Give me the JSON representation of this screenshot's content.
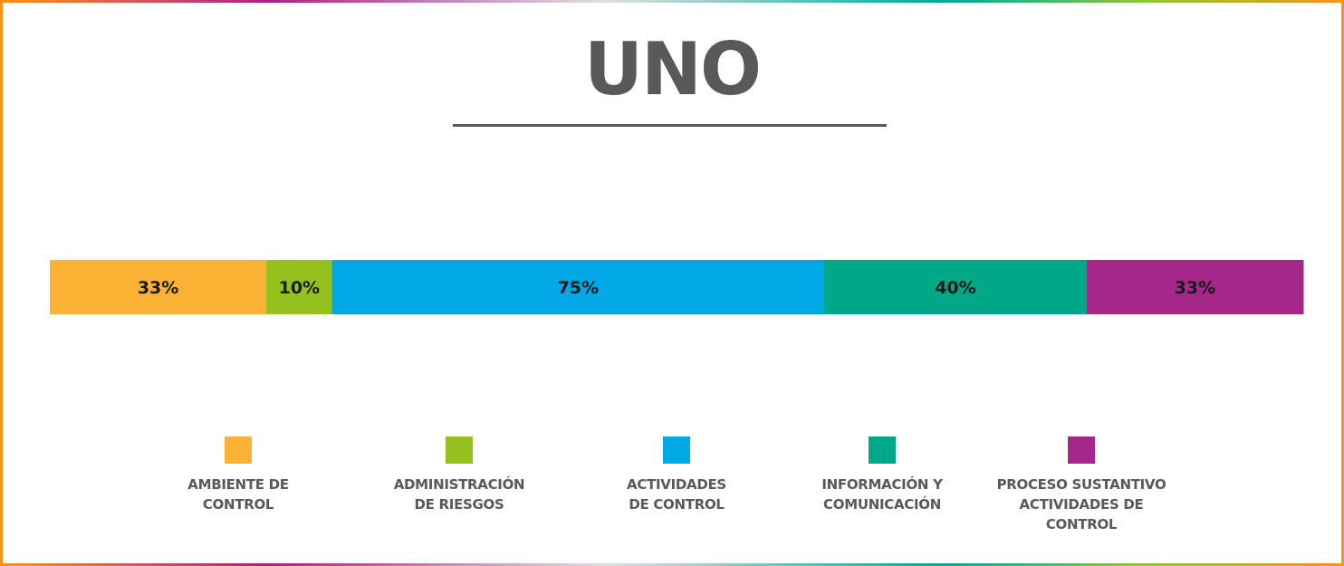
{
  "chart_data": {
    "type": "bar",
    "stacked": true,
    "orientation": "horizontal",
    "title": "UNO",
    "categories": [
      "AMBIENTE DE\nCONTROL",
      "ADMINISTRACIÓN\nDE RIESGOS",
      "ACTIVIDADES\nDE CONTROL",
      "INFORMACIÓN Y\nCOMUNICACIÓN",
      "PROCESO SUSTANTIVO\nACTIVIDADES DE\nCONTROL"
    ],
    "values": [
      33,
      10,
      75,
      40,
      33
    ],
    "value_labels": [
      "33%",
      "10%",
      "75%",
      "40%",
      "33%"
    ],
    "colors": [
      "#f9b233",
      "#95c11f",
      "#00a8e6",
      "#00a887",
      "#a5278a"
    ],
    "legend_position": "bottom",
    "grid": false
  }
}
